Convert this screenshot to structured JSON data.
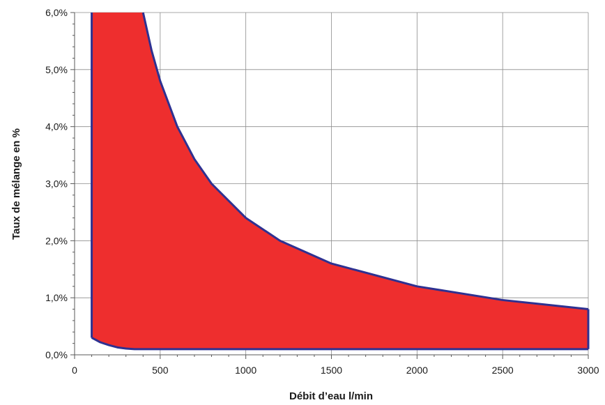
{
  "chart_data": {
    "type": "area",
    "title": "",
    "xlabel": "Débit d’eau l/min",
    "ylabel": "Taux de mélange en %",
    "xlim": [
      0,
      3000
    ],
    "ylim": [
      0,
      6
    ],
    "x_ticks": [
      0,
      500,
      1000,
      1500,
      2000,
      2500,
      3000
    ],
    "y_ticks": [
      0,
      1,
      2,
      3,
      4,
      5,
      6
    ],
    "x_tick_labels": [
      "0",
      "500",
      "1000",
      "1500",
      "2000",
      "2500",
      "3000"
    ],
    "y_tick_labels": [
      "0,0%",
      "1,0%",
      "2,0%",
      "3,0%",
      "4,0%",
      "5,0%",
      "6,0%"
    ],
    "grid": true,
    "colors": {
      "fill": "#ee2e2e",
      "outline": "#2e3191",
      "grid": "#8c8c8c"
    },
    "series": [
      {
        "upper_boundary": {
          "x": [
            100,
            100,
            400,
            450,
            500,
            600,
            700,
            800,
            1000,
            1200,
            1500,
            2000,
            2500,
            3000
          ],
          "y": [
            0.3,
            6.0,
            6.0,
            5.33,
            4.8,
            4.0,
            3.43,
            3.0,
            2.4,
            2.0,
            1.6,
            1.2,
            0.96,
            0.8
          ]
        },
        "lower_boundary": {
          "x": [
            100,
            150,
            200,
            250,
            300,
            350,
            400,
            1000,
            2000,
            3000
          ],
          "y": [
            0.3,
            0.22,
            0.17,
            0.13,
            0.11,
            0.1,
            0.1,
            0.1,
            0.1,
            0.1
          ]
        }
      }
    ]
  }
}
